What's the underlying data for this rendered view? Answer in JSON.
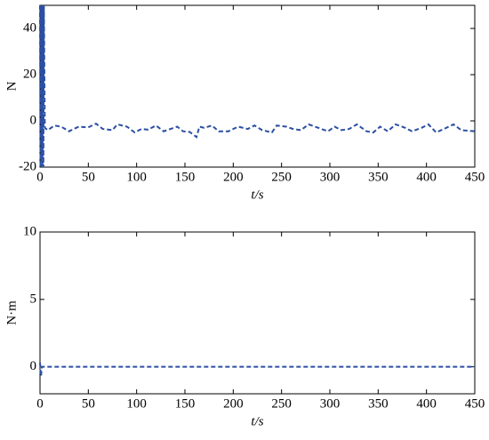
{
  "chart_data": [
    {
      "type": "line",
      "x_label": "t/s",
      "y_label": "N",
      "xlim": [
        0,
        450
      ],
      "xticks": [
        0,
        50,
        100,
        150,
        200,
        250,
        300,
        350,
        400,
        450
      ],
      "ylim": [
        -20,
        50
      ],
      "yticks": [
        -20,
        0,
        20,
        40
      ],
      "grid": false,
      "series": [
        {
          "color": "#2b4fa3",
          "x": [
            0,
            0.5,
            1,
            1.5,
            2,
            2.5,
            3,
            3.5,
            4,
            5,
            8,
            15,
            22,
            30,
            40,
            50,
            58,
            65,
            75,
            80,
            90,
            98,
            105,
            112,
            120,
            128,
            135,
            142,
            148,
            155,
            162,
            165,
            170,
            178,
            185,
            195,
            205,
            215,
            222,
            230,
            240,
            245,
            255,
            262,
            270,
            278,
            288,
            298,
            305,
            312,
            320,
            328,
            338,
            345,
            352,
            360,
            368,
            378,
            385,
            395,
            402,
            410,
            418,
            428,
            436,
            450
          ],
          "values": [
            50,
            -20,
            50,
            -20,
            50,
            -20,
            50,
            -20,
            50,
            -3,
            -4,
            -2,
            -2.5,
            -4.5,
            -2.5,
            -2.8,
            -1.2,
            -3.5,
            -4,
            -1.5,
            -2.5,
            -5,
            -3.5,
            -3.8,
            -2,
            -4.5,
            -3.5,
            -2.5,
            -4.5,
            -4.8,
            -7,
            -2.5,
            -3,
            -2,
            -4.5,
            -4.5,
            -2.5,
            -3.5,
            -2,
            -4,
            -5,
            -2,
            -2.5,
            -3.5,
            -4,
            -1.5,
            -3,
            -4.5,
            -2.5,
            -4,
            -3.5,
            -1.5,
            -4.5,
            -5,
            -2.5,
            -4.5,
            -1.5,
            -3,
            -4.5,
            -3,
            -1.5,
            -5,
            -3.5,
            -1.5,
            -4,
            -4.5
          ]
        }
      ]
    },
    {
      "type": "line",
      "x_label": "t/s",
      "y_label": "N·m",
      "xlim": [
        0,
        450
      ],
      "xticks": [
        0,
        50,
        100,
        150,
        200,
        250,
        300,
        350,
        400,
        450
      ],
      "ylim": [
        -2,
        10
      ],
      "yticks": [
        0,
        5,
        10
      ],
      "grid": false,
      "series": [
        {
          "color": "#2b4fa3",
          "x": [
            0,
            1,
            2,
            3,
            450
          ],
          "values": [
            0.3,
            -0.7,
            0,
            0,
            0
          ]
        }
      ]
    }
  ]
}
